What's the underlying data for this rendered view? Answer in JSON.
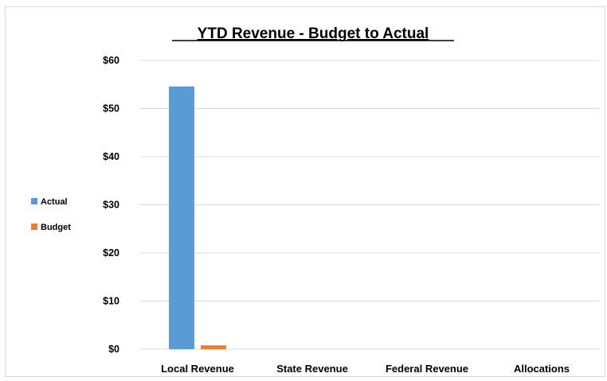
{
  "chart_data": {
    "type": "bar",
    "title": "YTD Revenue - Budget to Actual",
    "xlabel": "",
    "ylabel": "",
    "categories": [
      "Local Revenue",
      "State Revenue",
      "Federal Revenue",
      "Allocations"
    ],
    "series": [
      {
        "name": "Actual",
        "color": "#5b9bd5",
        "values": [
          54.6,
          0,
          0,
          0
        ]
      },
      {
        "name": "Budget",
        "color": "#ed7d31",
        "values": [
          0.8,
          0,
          0,
          0
        ]
      }
    ],
    "ylim": [
      0,
      60
    ],
    "yticks": [
      0,
      10,
      20,
      30,
      40,
      50,
      60
    ],
    "ytick_labels": [
      "$0",
      "$10",
      "$20",
      "$30",
      "$40",
      "$50",
      "$60"
    ],
    "grid": true,
    "legend_position": "left"
  }
}
